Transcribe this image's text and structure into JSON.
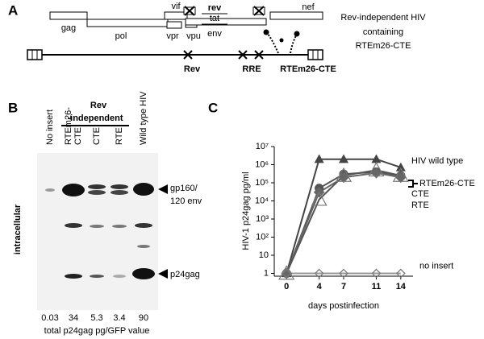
{
  "panel_a": {
    "letter": "A",
    "genes": [
      "gag",
      "pol",
      "vif",
      "vpr",
      "vpu",
      "env",
      "rev",
      "tat",
      "nef"
    ],
    "genome_labels": [
      "Rev",
      "RRE",
      "RTEm26-CTE"
    ],
    "description": [
      "Rev-independent  HIV",
      "containing",
      "RTEm26-CTE"
    ]
  },
  "panel_b": {
    "letter": "B",
    "group_label": [
      "Rev",
      "-independent"
    ],
    "lanes": [
      [
        "No insert"
      ],
      [
        "RTEm26-",
        "CTE"
      ],
      [
        "CTE"
      ],
      [
        "RTE"
      ],
      [
        "Wild type HIV"
      ]
    ],
    "side_label": "intracellular",
    "bands": [
      [
        "gp160/",
        "120 env"
      ],
      [
        "p24gag"
      ]
    ],
    "values": [
      "0.03",
      "34",
      "5.3",
      "3.4",
      "90"
    ],
    "caption": "total p24gag pg/GFP value"
  },
  "chart_data": {
    "type": "line",
    "panel_letter": "C",
    "x_label": "days postinfection",
    "y_label": "HIV-1 p24gag pg/ml",
    "log_y": true,
    "x": [
      0,
      4,
      7,
      11,
      14
    ],
    "xlim": [
      -1.5,
      15.5
    ],
    "xticks": [
      0,
      4,
      7,
      11,
      14
    ],
    "ylim": [
      0.7,
      10000000
    ],
    "yticks": [
      1,
      10,
      {
        "value": 100,
        "label": "10²"
      },
      {
        "value": 1000,
        "label": "10³"
      },
      {
        "value": 10000,
        "label": "10⁴"
      },
      {
        "value": 100000,
        "label": "10⁵"
      },
      {
        "value": 1000000,
        "label": "10⁶"
      },
      {
        "value": 10000000,
        "label": "10⁷"
      }
    ],
    "series": [
      {
        "name": "HIV wild type",
        "color": "#444444",
        "marker": "triangle",
        "values": [
          1,
          2000000,
          2000000,
          2000000,
          700000
        ]
      },
      {
        "name": "RTEm26-CTE",
        "color": "#555555",
        "marker": "circle",
        "values": [
          1,
          50000,
          300000,
          400000,
          250000
        ]
      },
      {
        "name": "CTE",
        "color": "#666666",
        "marker": "diamond",
        "values": [
          1,
          30000,
          200000,
          350000,
          200000
        ]
      },
      {
        "name": "RTE",
        "color": "#555555",
        "marker": "triangle-open",
        "values": [
          1,
          12000,
          250000,
          500000,
          250000
        ]
      },
      {
        "name": "no insert",
        "color": "#999999",
        "marker": "diamond-open",
        "values": [
          1,
          1,
          1,
          1,
          1
        ]
      }
    ]
  }
}
